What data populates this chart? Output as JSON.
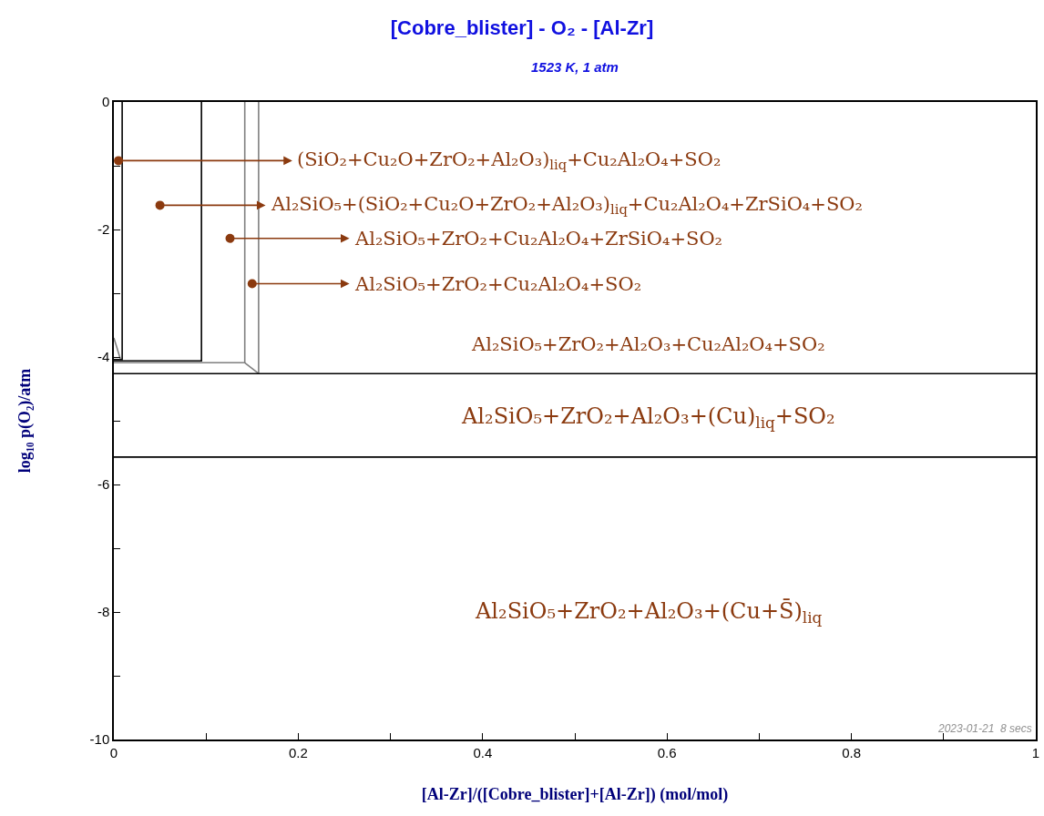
{
  "chart_data": {
    "type": "line",
    "title": "[Cobre_blister] - O₂ - [Al-Zr]",
    "subtitle": "1523 K, 1 atm",
    "xlabel": "[Al-Zr]/([Cobre_blister]+[Al-Zr]) (mol/mol)",
    "ylabel": "log₁₀ p(O₂)/atm",
    "xlim": [
      0,
      1
    ],
    "ylim": [
      -10,
      0
    ],
    "xticks": [
      0,
      {
        "value": 0.1,
        "label": null
      },
      0.2,
      {
        "value": 0.3,
        "label": null
      },
      0.4,
      {
        "value": 0.5,
        "label": null
      },
      0.6,
      {
        "value": 0.7,
        "label": null
      },
      0.8,
      {
        "value": 0.9,
        "label": null
      },
      1
    ],
    "yticks": [
      -10,
      {
        "value": -9,
        "label": null
      },
      -8,
      {
        "value": -7,
        "label": null
      },
      -6,
      {
        "value": -5,
        "label": null
      },
      -4,
      {
        "value": -3,
        "label": null
      },
      -2,
      {
        "value": -1,
        "label": null
      },
      0
    ],
    "marker": "none",
    "series": [
      {
        "color": "#000000",
        "x": [
          0.009,
          0.009,
          0
        ],
        "values": [
          0,
          -4.04,
          -4.04
        ]
      },
      {
        "color": "#000000",
        "x": [
          0.095,
          0.095,
          0
        ],
        "values": [
          0,
          -4.06,
          -4.06
        ]
      },
      {
        "color": "#808080",
        "x": [
          0,
          0.142,
          0.142
        ],
        "values": [
          -4.09,
          -4.09,
          0
        ]
      },
      {
        "color": "#808080",
        "x": [
          0.142,
          0.157,
          0.157
        ],
        "values": [
          -4.09,
          -4.26,
          0
        ]
      },
      {
        "color": "#000000",
        "x": [
          0,
          1
        ],
        "values": [
          -4.26,
          -4.26
        ]
      },
      {
        "color": "#000000",
        "x": [
          0,
          1
        ],
        "values": [
          -5.57,
          -5.57
        ]
      },
      {
        "color": "#808080",
        "x": [
          0,
          0.007
        ],
        "values": [
          -3.7,
          -4.03
        ]
      }
    ],
    "annotations": [
      {
        "text": "(SiO₂+Cu₂O+ZrO₂+Al₂O₃)$_{liq}$+Cu₂Al₂O₄+SO₂",
        "x": 0.005,
        "y": -0.92
      },
      {
        "text": "Al₂SiO₅+(SiO₂+Cu₂O+ZrO₂+Al₂O₃)$_{liq}$+Cu₂Al₂O₄+ZrSiO₄+SO₂",
        "x": 0.05,
        "y": -1.62
      },
      {
        "text": "Al₂SiO₅+ZrO₂+Cu₂Al₂O₄+ZrSiO₄+SO₂",
        "x": 0.126,
        "y": -2.14
      },
      {
        "text": "Al₂SiO₅+ZrO₂+Cu₂Al₂O₄+SO₂",
        "x": 0.15,
        "y": -2.85
      },
      "Al₂SiO₅+ZrO₂+Al₂O₃+Cu₂Al₂O₄+SO₂",
      "Al₂SiO₅+ZrO₂+Al₂O₃+(Cu)$_{liq}$+SO₂",
      "Al₂SiO₅+ZrO₂+Al₂O₃+(Cu+S̄)$_{liq}$",
      "2023-01-21  8 secs"
    ]
  }
}
